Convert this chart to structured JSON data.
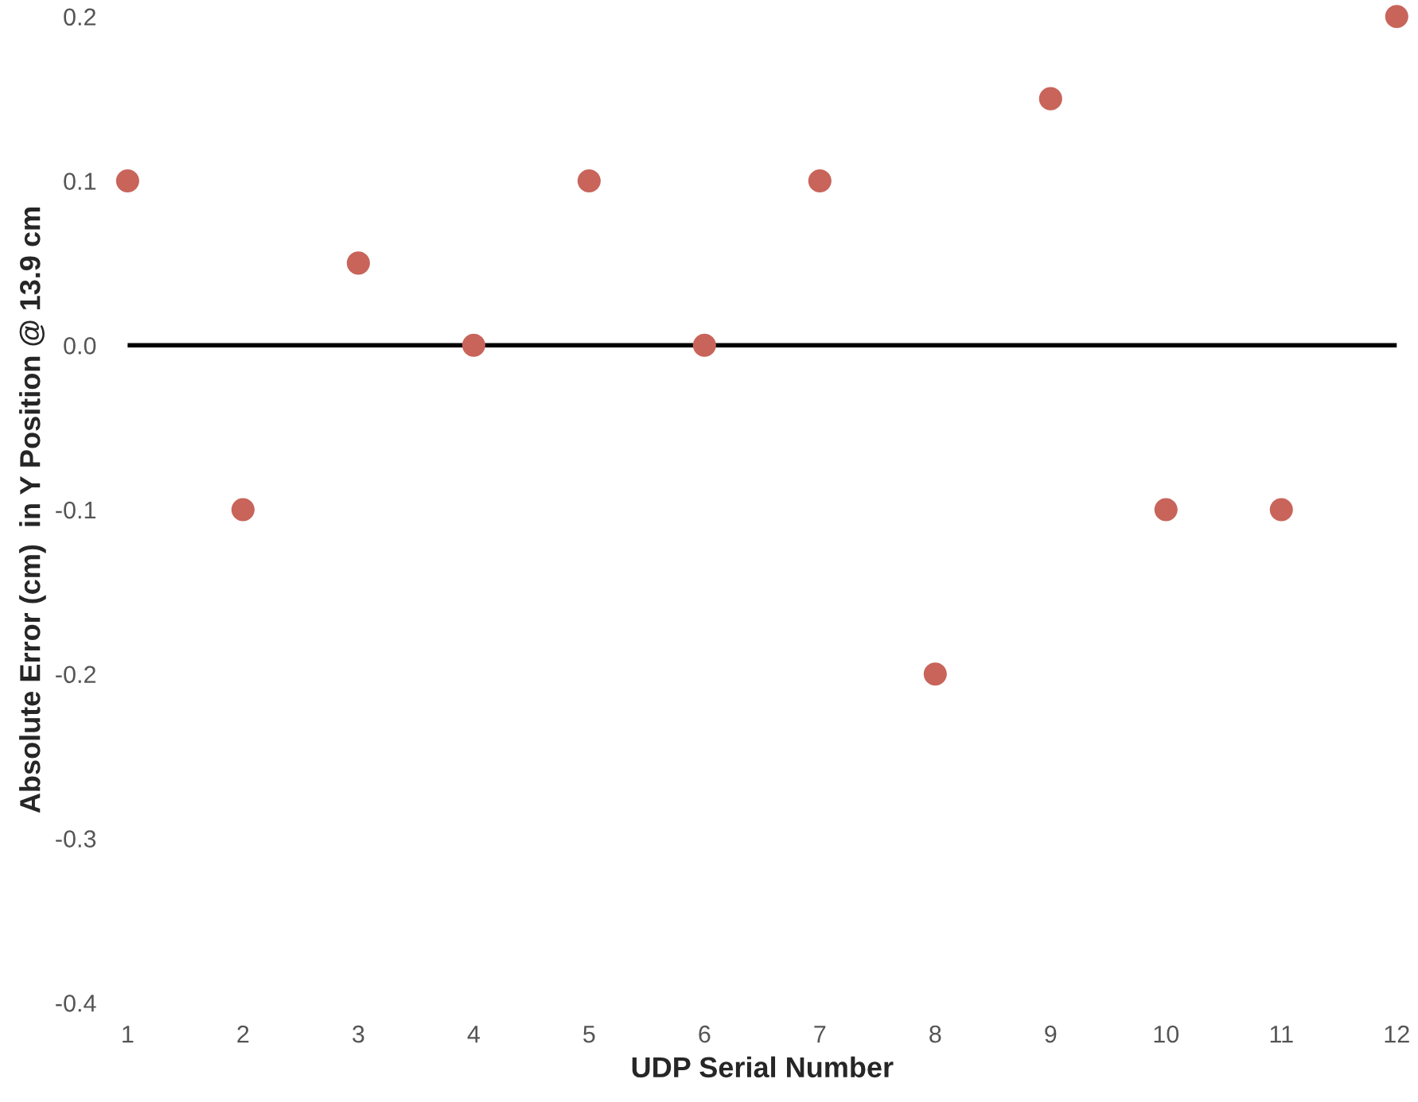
{
  "chart_data": {
    "type": "scatter",
    "xlabel": "UDP Serial Number",
    "ylabel": "Absolute Error (cm)  in Y Position @ 13.9 cm",
    "x": [
      1,
      2,
      3,
      4,
      5,
      6,
      7,
      8,
      9,
      10,
      11,
      12
    ],
    "series": [
      {
        "color": "#c8645a",
        "values": [
          0.1,
          -0.1,
          0.05,
          0,
          0.1,
          0,
          0.1,
          -0.2,
          0.15,
          -0.1,
          -0.1,
          0.2
        ]
      }
    ],
    "xlim": [
      1,
      12
    ],
    "xticks": [
      1,
      2,
      3,
      4,
      5,
      6,
      7,
      8,
      9,
      10,
      11,
      12
    ],
    "ylim": [
      -0.4,
      0.2
    ],
    "yticks": [
      {
        "value": -0.4,
        "label": "-0.4"
      },
      {
        "value": -0.3,
        "label": "-0.3"
      },
      {
        "value": -0.2,
        "label": "-0.2"
      },
      {
        "value": -0.1,
        "label": "-0.1"
      },
      {
        "value": 0,
        "label": "0.0"
      },
      {
        "value": 0.1,
        "label": "0.1"
      },
      {
        "value": 0.2,
        "label": "0.2"
      }
    ],
    "ref_lines": [
      {
        "axis": "y",
        "value": 0,
        "color": "#000000",
        "line_style": "solid"
      }
    ],
    "marker": "circle",
    "grid": false,
    "legend": false
  }
}
